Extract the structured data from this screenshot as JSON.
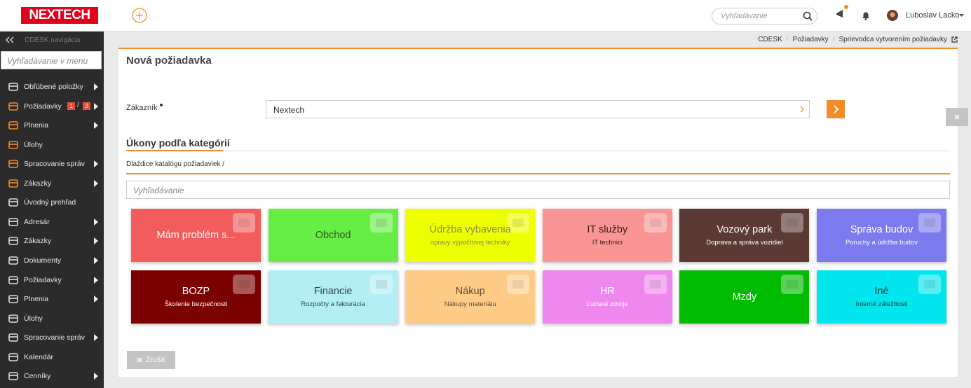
{
  "header": {
    "logo": "NEXTECH",
    "search_placeholder": "Vyhľadávanie",
    "user": "Ľuboslav Lacko"
  },
  "sidebar": {
    "title": "CDESK navigácia",
    "search_placeholder": "Vyhľadávanie v menu",
    "items": [
      {
        "label": "Obľúbené položky",
        "has_submenu": true
      },
      {
        "label": "Požiadavky",
        "badges": [
          "1",
          "3"
        ],
        "badge_separator": "/",
        "has_submenu": true
      },
      {
        "label": "Plnenia",
        "has_submenu": true
      },
      {
        "label": "Úlohy",
        "has_submenu": false
      },
      {
        "label": "Spracovanie správ",
        "has_submenu": true
      },
      {
        "label": "Zákazky",
        "has_submenu": true
      },
      {
        "label": "Úvodný prehľad",
        "has_submenu": false
      },
      {
        "label": "Adresár",
        "has_submenu": true
      },
      {
        "label": "Zákazky",
        "has_submenu": true
      },
      {
        "label": "Dokumenty",
        "has_submenu": true
      },
      {
        "label": "Požiadavky",
        "has_submenu": true
      },
      {
        "label": "Plnenia",
        "has_submenu": true
      },
      {
        "label": "Úlohy",
        "has_submenu": false
      },
      {
        "label": "Spracovanie správ",
        "has_submenu": true
      },
      {
        "label": "Kalendár",
        "has_submenu": false
      },
      {
        "label": "Cenníky",
        "has_submenu": true
      }
    ]
  },
  "breadcrumb": {
    "items": [
      "CDESK",
      "Požiadavky",
      "Sprievodca vytvorením požiadavky"
    ],
    "separator": "/"
  },
  "form": {
    "title": "Nová požiadavka",
    "customer_label": "Zákazník",
    "customer_value": "Nextech",
    "section_title": "Úkony podľa kategórií",
    "catalog_path": "Dlaždice katalógu požiadaviek /",
    "search_placeholder": "Vyhľadávanie",
    "tiles": [
      {
        "title": "Mám problém s...",
        "color": "#f25c5c",
        "text_color": "#ffffff"
      },
      {
        "title": "Obchod",
        "color": "#66ee44",
        "text_color": "#2d5a1e"
      },
      {
        "title": "Údržba vybavenia",
        "subtitle": "opravy výpočtovej techniky",
        "color": "#eeff00",
        "text_color": "#8a8a55"
      },
      {
        "title": "IT služby",
        "subtitle": "IT technici",
        "color": "#f99595",
        "text_color": "#3a1a1a"
      },
      {
        "title": "Vozový park",
        "subtitle": "Doprava a správa vozidiel",
        "color": "#5a3a33",
        "text_color": "#ffffff"
      },
      {
        "title": "Správa budov",
        "subtitle": "Poruchy a údržba budov",
        "color": "#7b7bef",
        "text_color": "#ffffff"
      },
      {
        "title": "BOZP",
        "subtitle": "Školenie bezpečnosti",
        "color": "#7b0000",
        "text_color": "#ffffff"
      },
      {
        "title": "Financie",
        "subtitle": "Rozpočty a fakturácia",
        "color": "#b3eef5",
        "text_color": "#334455"
      },
      {
        "title": "Nákup",
        "subtitle": "Nákupy materiálu",
        "color": "#ffcc88",
        "text_color": "#5a4a30"
      },
      {
        "title": "HR",
        "subtitle": "Ľudské zdroje",
        "color": "#ee88ee",
        "text_color": "#ffffff"
      },
      {
        "title": "Mzdy",
        "color": "#00bb00",
        "text_color": "#ffffff"
      },
      {
        "title": "Iné",
        "subtitle": "Interné záležitosti",
        "color": "#00e5ee",
        "text_color": "#1a3a3a"
      }
    ],
    "cancel": "Zrušiť"
  }
}
